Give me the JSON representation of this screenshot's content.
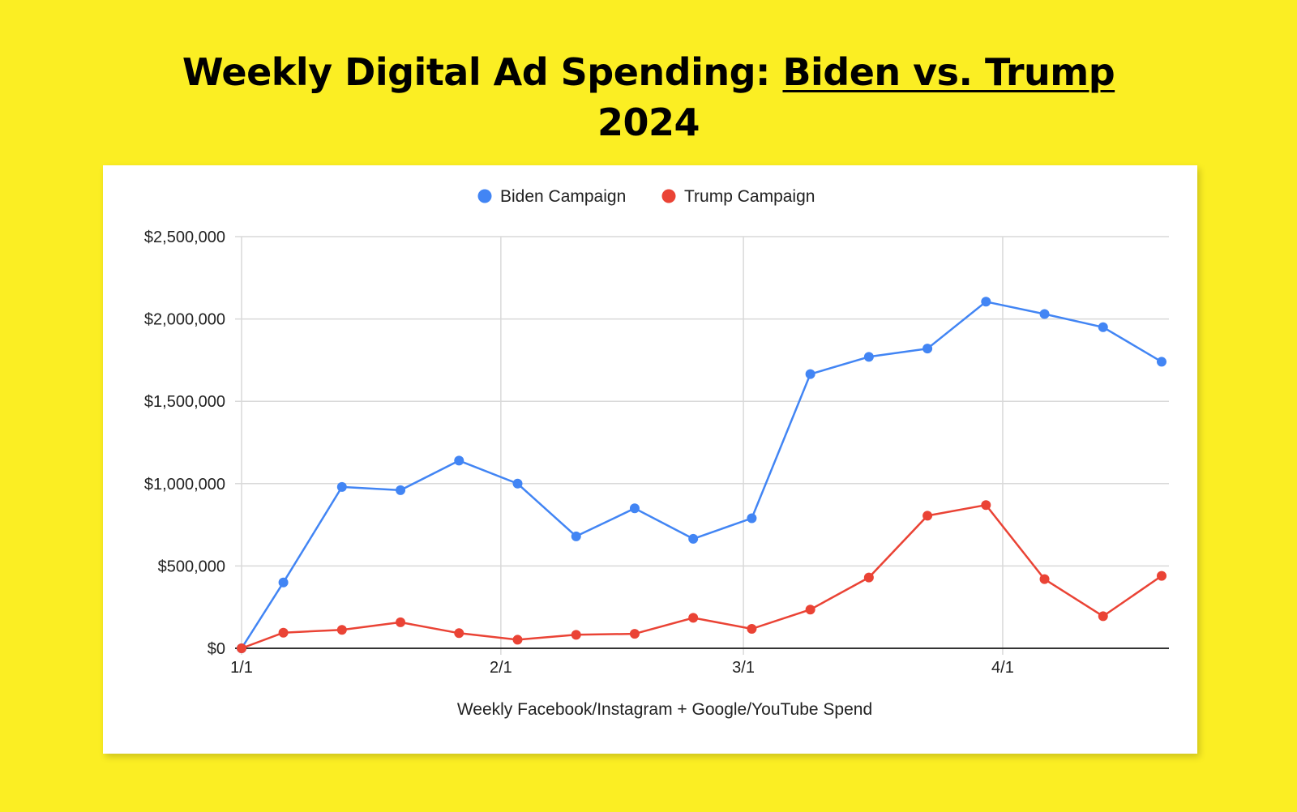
{
  "header": {
    "title_plain": "Weekly Digital Ad Spending: ",
    "title_underlined": "Biden vs. Trump",
    "title_line2": "2024"
  },
  "colors": {
    "background": "#fbee23",
    "biden": "#4285f4",
    "trump": "#ea4335",
    "grid": "#d9d9d9",
    "axis": "#333333"
  },
  "chart_data": {
    "type": "line",
    "title": "Weekly Digital Ad Spending: Biden vs. Trump 2024",
    "xlabel": "Weekly Facebook/Instagram + Google/YouTube Spend",
    "ylabel": "",
    "x_ticks": [
      "1/1",
      "2/1",
      "3/1",
      "4/1"
    ],
    "y_ticks": [
      "$0",
      "$500,000",
      "$1,000,000",
      "$1,500,000",
      "$2,000,000",
      "$2,500,000"
    ],
    "ylim": [
      0,
      2500000
    ],
    "grid": true,
    "legend_position": "top-center",
    "x": [
      "2024-01-01",
      "2024-01-06",
      "2024-01-13",
      "2024-01-20",
      "2024-01-27",
      "2024-02-03",
      "2024-02-10",
      "2024-02-17",
      "2024-02-24",
      "2024-03-02",
      "2024-03-09",
      "2024-03-16",
      "2024-03-23",
      "2024-03-30",
      "2024-04-06",
      "2024-04-13",
      "2024-04-20"
    ],
    "series": [
      {
        "name": "Biden Campaign",
        "color": "#4285f4",
        "values": [
          0,
          400000,
          980000,
          960000,
          1140000,
          1000000,
          680000,
          850000,
          665000,
          790000,
          1665000,
          1770000,
          1820000,
          2105000,
          2030000,
          1950000,
          1740000
        ]
      },
      {
        "name": "Trump Campaign",
        "color": "#ea4335",
        "values": [
          0,
          95000,
          112000,
          158000,
          92000,
          52000,
          82000,
          88000,
          185000,
          118000,
          235000,
          430000,
          805000,
          870000,
          420000,
          195000,
          440000
        ]
      }
    ]
  }
}
